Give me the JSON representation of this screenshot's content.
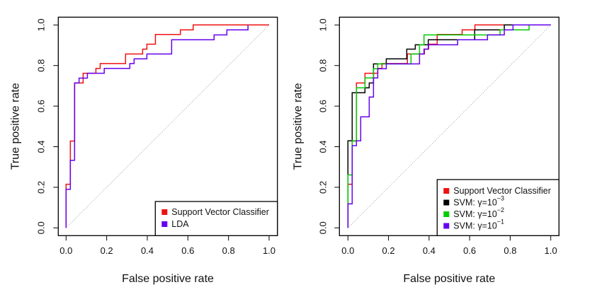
{
  "chart_data": [
    {
      "type": "line",
      "subtype": "step",
      "title": "",
      "xlabel": "False positive rate",
      "ylabel": "True positive rate",
      "xlim": [
        0,
        1
      ],
      "ylim": [
        0,
        1
      ],
      "xticks": [
        "0.0",
        "0.2",
        "0.4",
        "0.6",
        "0.8",
        "1.0"
      ],
      "yticks": [
        "0.0",
        "0.2",
        "0.4",
        "0.6",
        "0.8",
        "1.0"
      ],
      "grid": false,
      "diagonal_reference": true,
      "legend_position": "bottom-right",
      "series": [
        {
          "name": "Support Vector Classifier",
          "color": "#ee1111",
          "x": [
            0,
            0,
            0.021,
            0.021,
            0.042,
            0.042,
            0.084,
            0.084,
            0.147,
            0.147,
            0.168,
            0.168,
            0.293,
            0.293,
            0.377,
            0.377,
            0.398,
            0.398,
            0.44,
            0.44,
            0.563,
            0.563,
            0.626,
            0.626,
            1.0
          ],
          "y": [
            0,
            0.215,
            0.215,
            0.428,
            0.428,
            0.714,
            0.714,
            0.762,
            0.762,
            0.786,
            0.786,
            0.81,
            0.81,
            0.857,
            0.857,
            0.881,
            0.881,
            0.905,
            0.905,
            0.953,
            0.953,
            0.976,
            0.976,
            1.0,
            1.0
          ]
        },
        {
          "name": "LDA",
          "color": "#6600ee",
          "x": [
            0,
            0,
            0.021,
            0.021,
            0.042,
            0.042,
            0.064,
            0.064,
            0.105,
            0.105,
            0.188,
            0.188,
            0.314,
            0.314,
            0.335,
            0.335,
            0.398,
            0.398,
            0.52,
            0.52,
            0.729,
            0.729,
            0.792,
            0.792,
            0.896,
            0.896
          ],
          "y": [
            0,
            0.19,
            0.19,
            0.333,
            0.333,
            0.714,
            0.714,
            0.738,
            0.738,
            0.762,
            0.762,
            0.786,
            0.786,
            0.81,
            0.81,
            0.833,
            0.833,
            0.857,
            0.857,
            0.927,
            0.927,
            0.951,
            0.951,
            0.976,
            0.976,
            1.0
          ]
        }
      ]
    },
    {
      "type": "line",
      "subtype": "step",
      "title": "",
      "xlabel": "False positive rate",
      "ylabel": "True positive rate",
      "xlim": [
        0,
        1
      ],
      "ylim": [
        0,
        1
      ],
      "xticks": [
        "0.0",
        "0.2",
        "0.4",
        "0.6",
        "0.8",
        "1.0"
      ],
      "yticks": [
        "0.0",
        "0.2",
        "0.4",
        "0.6",
        "0.8",
        "1.0"
      ],
      "grid": false,
      "diagonal_reference": true,
      "legend_position": "bottom-right",
      "series": [
        {
          "name": "Support Vector Classifier",
          "legend_base": "Support Vector Classifier",
          "legend_exp": "",
          "color": "#ee1111",
          "x": [
            0,
            0,
            0.021,
            0.021,
            0.042,
            0.042,
            0.084,
            0.084,
            0.147,
            0.147,
            0.168,
            0.168,
            0.293,
            0.293,
            0.377,
            0.377,
            0.398,
            0.398,
            0.44,
            0.44,
            0.563,
            0.563,
            0.626,
            0.626,
            1.0
          ],
          "y": [
            0,
            0.215,
            0.215,
            0.428,
            0.428,
            0.714,
            0.714,
            0.762,
            0.762,
            0.786,
            0.786,
            0.81,
            0.81,
            0.857,
            0.857,
            0.881,
            0.881,
            0.905,
            0.905,
            0.953,
            0.953,
            0.976,
            0.976,
            1.0,
            1.0
          ]
        },
        {
          "name": "SVM: γ=10^-3",
          "legend_base": "SVM: γ=10",
          "legend_exp": "−3",
          "color": "#000000",
          "x": [
            0,
            0,
            0.021,
            0.021,
            0.084,
            0.084,
            0.105,
            0.105,
            0.126,
            0.126,
            0.189,
            0.189,
            0.29,
            0.29,
            0.332,
            0.332,
            0.396,
            0.396,
            0.625,
            0.625,
            0.771,
            0.771,
            1.0
          ],
          "y": [
            0,
            0.429,
            0.429,
            0.666,
            0.666,
            0.69,
            0.69,
            0.714,
            0.714,
            0.808,
            0.808,
            0.833,
            0.833,
            0.881,
            0.881,
            0.902,
            0.902,
            0.927,
            0.927,
            0.976,
            0.976,
            1.0,
            1.0
          ]
        },
        {
          "name": "SVM: γ=10^-2",
          "legend_base": "SVM: γ=10",
          "legend_exp": "−2",
          "color": "#00cc00",
          "x": [
            0,
            0,
            0.021,
            0.021,
            0.042,
            0.042,
            0.084,
            0.084,
            0.126,
            0.126,
            0.147,
            0.147,
            0.311,
            0.311,
            0.353,
            0.353,
            0.375,
            0.375,
            0.75,
            0.75,
            0.893,
            0.893,
            1.0
          ],
          "y": [
            0,
            0.261,
            0.261,
            0.429,
            0.429,
            0.69,
            0.69,
            0.739,
            0.739,
            0.784,
            0.784,
            0.808,
            0.808,
            0.857,
            0.857,
            0.902,
            0.902,
            0.951,
            0.951,
            0.976,
            0.976,
            1.0,
            1.0
          ]
        },
        {
          "name": "SVM: γ=10^-1",
          "legend_base": "SVM: γ=10",
          "legend_exp": "−1",
          "color": "#6600ee",
          "x": [
            0,
            0,
            0.021,
            0.021,
            0.042,
            0.042,
            0.063,
            0.063,
            0.105,
            0.105,
            0.126,
            0.126,
            0.147,
            0.147,
            0.189,
            0.189,
            0.353,
            0.353,
            0.375,
            0.375,
            0.396,
            0.396,
            0.541,
            0.541,
            0.688,
            0.688,
            0.771,
            0.771,
            0.814,
            0.814,
            1.0
          ],
          "y": [
            0,
            0.118,
            0.118,
            0.405,
            0.405,
            0.429,
            0.429,
            0.547,
            0.547,
            0.645,
            0.645,
            0.739,
            0.739,
            0.784,
            0.784,
            0.808,
            0.808,
            0.857,
            0.857,
            0.881,
            0.881,
            0.902,
            0.902,
            0.927,
            0.927,
            0.951,
            0.951,
            0.976,
            0.976,
            1.0,
            1.0
          ]
        }
      ]
    }
  ]
}
